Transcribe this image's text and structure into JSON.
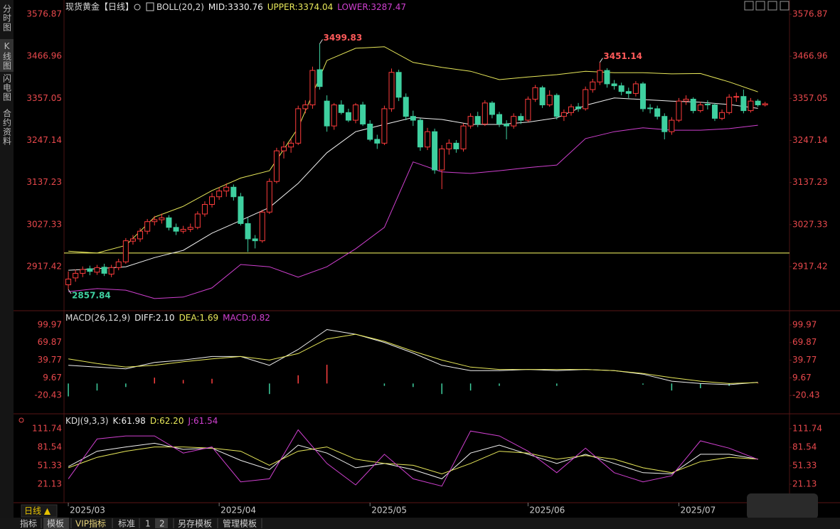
{
  "sidebar": {
    "tabs": [
      "分时图",
      "K线图",
      "闪电图",
      "合约资料"
    ]
  },
  "bottom_bar": {
    "period": "日线 ▲",
    "tabs": [
      "指标",
      "模板",
      "VIP指标",
      "标准",
      "1",
      "2",
      "另存模板",
      "管理模板"
    ]
  },
  "chart_data": [
    {
      "type": "candlestick",
      "title": "现货黄金【日线】",
      "indicator": "BOLL(20,2)",
      "up_color": "#ff3c3c",
      "down_color": "#3fd0a0",
      "xlim": [
        -0.6,
        100.4
      ],
      "ylim": [
        2806,
        3599.2
      ],
      "yticks": [
        3576.87,
        3466.96,
        3357.05,
        3247.14,
        3137.23,
        3027.33,
        2917.42
      ],
      "xticks": [
        {
          "value": 0,
          "label": "2025/03"
        },
        {
          "value": 21,
          "label": "2025/04"
        },
        {
          "value": 42,
          "label": "2025/05"
        },
        {
          "value": 64,
          "label": "2025/06"
        },
        {
          "value": 85,
          "label": "2025/07"
        }
      ],
      "hline": {
        "value": 2953,
        "color": "#ffff66"
      },
      "candles": [
        [
          2870,
          2905,
          2857.84,
          2885
        ],
        [
          2888,
          2910,
          2878,
          2900
        ],
        [
          2900,
          2918,
          2890,
          2910
        ],
        [
          2912,
          2920,
          2895,
          2905
        ],
        [
          2903,
          2922,
          2896,
          2915
        ],
        [
          2916,
          2925,
          2893,
          2900
        ],
        [
          2898,
          2922,
          2890,
          2915
        ],
        [
          2915,
          2938,
          2908,
          2930
        ],
        [
          2930,
          2992,
          2925,
          2985
        ],
        [
          2984,
          3000,
          2975,
          2990
        ],
        [
          2990,
          3018,
          2982,
          3010
        ],
        [
          3010,
          3042,
          3002,
          3035
        ],
        [
          3035,
          3050,
          3025,
          3040
        ],
        [
          3040,
          3056,
          3030,
          3045
        ],
        [
          3045,
          3052,
          3012,
          3020
        ],
        [
          3020,
          3030,
          3000,
          3010
        ],
        [
          3010,
          3024,
          3004,
          3015
        ],
        [
          3015,
          3030,
          3008,
          3020
        ],
        [
          3020,
          3062,
          3015,
          3055
        ],
        [
          3055,
          3088,
          3048,
          3080
        ],
        [
          3080,
          3110,
          3072,
          3100
        ],
        [
          3100,
          3125,
          3092,
          3115
        ],
        [
          3115,
          3135,
          3100,
          3125
        ],
        [
          3125,
          3132,
          3090,
          3100
        ],
        [
          3100,
          3110,
          3025,
          3030
        ],
        [
          3030,
          3045,
          2956,
          2990
        ],
        [
          2990,
          3000,
          2965,
          2985
        ],
        [
          2985,
          3066,
          2980,
          3060
        ],
        [
          3060,
          3148,
          3055,
          3140
        ],
        [
          3140,
          3228,
          3135,
          3220
        ],
        [
          3220,
          3245,
          3200,
          3230
        ],
        [
          3230,
          3250,
          3215,
          3240
        ],
        [
          3240,
          3338,
          3235,
          3330
        ],
        [
          3330,
          3352,
          3318,
          3340
        ],
        [
          3340,
          3440,
          3330,
          3430
        ],
        [
          3432,
          3499.83,
          3380,
          3388
        ],
        [
          3350,
          3365,
          3270,
          3285
        ],
        [
          3285,
          3345,
          3275,
          3340
        ],
        [
          3340,
          3352,
          3315,
          3320
        ],
        [
          3320,
          3330,
          3295,
          3300
        ],
        [
          3300,
          3345,
          3292,
          3340
        ],
        [
          3340,
          3348,
          3285,
          3290
        ],
        [
          3290,
          3300,
          3245,
          3250
        ],
        [
          3250,
          3262,
          3225,
          3240
        ],
        [
          3240,
          3338,
          3235,
          3330
        ],
        [
          3330,
          3435,
          3322,
          3425
        ],
        [
          3425,
          3432,
          3350,
          3360
        ],
        [
          3360,
          3370,
          3300,
          3310
        ],
        [
          3310,
          3325,
          3285,
          3300
        ],
        [
          3300,
          3305,
          3220,
          3230
        ],
        [
          3230,
          3280,
          3222,
          3270
        ],
        [
          3270,
          3278,
          3160,
          3170
        ],
        [
          3170,
          3235,
          3120,
          3225
        ],
        [
          3225,
          3250,
          3210,
          3240
        ],
        [
          3240,
          3248,
          3215,
          3225
        ],
        [
          3225,
          3292,
          3218,
          3285
        ],
        [
          3285,
          3318,
          3278,
          3310
        ],
        [
          3310,
          3322,
          3282,
          3290
        ],
        [
          3290,
          3352,
          3285,
          3345
        ],
        [
          3345,
          3350,
          3305,
          3315
        ],
        [
          3315,
          3322,
          3282,
          3290
        ],
        [
          3290,
          3300,
          3250,
          3285
        ],
        [
          3285,
          3318,
          3278,
          3310
        ],
        [
          3310,
          3318,
          3290,
          3300
        ],
        [
          3300,
          3362,
          3295,
          3355
        ],
        [
          3355,
          3392,
          3348,
          3385
        ],
        [
          3385,
          3390,
          3332,
          3340
        ],
        [
          3340,
          3378,
          3335,
          3365
        ],
        [
          3365,
          3370,
          3302,
          3310
        ],
        [
          3310,
          3328,
          3298,
          3320
        ],
        [
          3320,
          3342,
          3312,
          3335
        ],
        [
          3335,
          3345,
          3322,
          3330
        ],
        [
          3330,
          3388,
          3325,
          3380
        ],
        [
          3380,
          3408,
          3372,
          3400
        ],
        [
          3400,
          3451.14,
          3392,
          3430
        ],
        [
          3430,
          3436,
          3385,
          3395
        ],
        [
          3395,
          3405,
          3380,
          3390
        ],
        [
          3390,
          3398,
          3365,
          3375
        ],
        [
          3375,
          3385,
          3358,
          3370
        ],
        [
          3370,
          3402,
          3362,
          3395
        ],
        [
          3395,
          3400,
          3322,
          3330
        ],
        [
          3332,
          3342,
          3318,
          3330
        ],
        [
          3330,
          3338,
          3302,
          3310
        ],
        [
          3310,
          3318,
          3250,
          3270
        ],
        [
          3270,
          3308,
          3262,
          3300
        ],
        [
          3300,
          3358,
          3295,
          3350
        ],
        [
          3350,
          3365,
          3340,
          3355
        ],
        [
          3355,
          3360,
          3318,
          3325
        ],
        [
          3325,
          3348,
          3320,
          3340
        ],
        [
          3342,
          3352,
          3328,
          3340
        ],
        [
          3340,
          3345,
          3298,
          3305
        ],
        [
          3305,
          3328,
          3300,
          3320
        ],
        [
          3320,
          3368,
          3315,
          3360
        ],
        [
          3360,
          3372,
          3348,
          3362
        ],
        [
          3362,
          3380,
          3318,
          3325
        ],
        [
          3325,
          3358,
          3320,
          3350
        ],
        [
          3350,
          3355,
          3335,
          3340
        ],
        [
          3340,
          3348,
          3336,
          3343
        ]
      ],
      "x": [
        0,
        4,
        8,
        12,
        16,
        20,
        24,
        28,
        32,
        36,
        40,
        44,
        48,
        52,
        56,
        60,
        64,
        68,
        72,
        76,
        80,
        84,
        88,
        92,
        96
      ],
      "series": [
        {
          "label": "MID:3330.76",
          "color": "#f0f0f0",
          "values": [
            2908,
            2912,
            2917,
            2941,
            2960,
            3005,
            3038,
            3072,
            3135,
            3215,
            3270,
            3289,
            3307,
            3302,
            3289,
            3289,
            3295,
            3306,
            3339,
            3358,
            3354,
            3350,
            3347,
            3341,
            3331
          ]
        },
        {
          "label": "UPPER:3374.04",
          "color": "#e8e85a",
          "values": [
            2958,
            2953,
            2973,
            3047,
            3075,
            3116,
            3149,
            3168,
            3280,
            3456,
            3488,
            3492,
            3451,
            3438,
            3428,
            3406,
            3413,
            3419,
            3428,
            3424,
            3424,
            3421,
            3422,
            3400,
            3374
          ]
        },
        {
          "label": "LOWER:3287.47",
          "color": "#d040d0",
          "values": [
            2852,
            2860,
            2856,
            2834,
            2838,
            2862,
            2923,
            2917,
            2890,
            2917,
            2964,
            3020,
            3191,
            3165,
            3161,
            3168,
            3176,
            3183,
            3252,
            3270,
            3280,
            3274,
            3274,
            3278,
            3287
          ]
        }
      ]
    },
    {
      "type": "macd",
      "indicator": "MACD(26,12,9)",
      "xlim": [
        -0.6,
        100.4
      ],
      "ylim": [
        -49.3,
        120.5
      ],
      "yticks": [
        99.97,
        69.87,
        39.77,
        9.67,
        -20.43
      ],
      "x": [
        0,
        4,
        8,
        12,
        16,
        20,
        24,
        28,
        32,
        36,
        40,
        44,
        48,
        52,
        56,
        60,
        64,
        68,
        72,
        76,
        80,
        84,
        88,
        92,
        96
      ],
      "series": [
        {
          "label": "DIFF:2.10",
          "color": "#f0f0f0",
          "values": [
            31,
            28,
            25,
            36,
            40,
            46,
            46,
            31,
            58,
            92,
            84,
            70,
            52,
            31,
            22,
            22,
            24,
            22,
            24,
            22,
            16,
            4,
            0,
            -2,
            2.1
          ]
        },
        {
          "label": "DEA:1.69",
          "color": "#e8e85a",
          "values": [
            42,
            34,
            28,
            31,
            37,
            42,
            46,
            40,
            51,
            76,
            84,
            72,
            55,
            40,
            28,
            24,
            24,
            24,
            24,
            22,
            17,
            10,
            4,
            0,
            1.69
          ]
        }
      ],
      "histogram": {
        "label": "MACD:0.82",
        "color": "#d040d0",
        "up_color": "#ff4040",
        "down_color": "#3fd0a0",
        "values": [
          -22,
          -12,
          -6,
          10,
          6,
          8,
          0,
          -18,
          14,
          32,
          0,
          -4,
          -6,
          -18,
          -12,
          -4,
          0,
          -4,
          0,
          0,
          -2,
          -12,
          -8,
          -4,
          0.82
        ]
      }
    },
    {
      "type": "line",
      "indicator": "KDJ(9,3,3)",
      "xlim": [
        -0.6,
        100.4
      ],
      "ylim": [
        -6.7,
        132.6
      ],
      "yticks": [
        111.74,
        81.54,
        51.33,
        21.13
      ],
      "x": [
        0,
        4,
        8,
        12,
        16,
        20,
        24,
        28,
        32,
        36,
        40,
        44,
        48,
        52,
        56,
        60,
        64,
        68,
        72,
        76,
        80,
        84,
        88,
        92,
        96
      ],
      "series": [
        {
          "label": "K:61.98",
          "color": "#f0f0f0",
          "values": [
            50,
            75,
            82,
            88,
            78,
            80,
            60,
            45,
            85,
            72,
            48,
            55,
            45,
            30,
            72,
            85,
            70,
            55,
            70,
            55,
            40,
            38,
            70,
            70,
            61.98
          ]
        },
        {
          "label": "D:62.20",
          "color": "#e8e85a",
          "values": [
            48,
            65,
            75,
            82,
            82,
            80,
            75,
            52,
            75,
            82,
            62,
            55,
            52,
            38,
            55,
            75,
            72,
            62,
            68,
            62,
            48,
            40,
            58,
            65,
            62.2
          ]
        },
        {
          "label": "J:61.54",
          "color": "#d040d0",
          "values": [
            30,
            95,
            100,
            100,
            72,
            82,
            25,
            30,
            110,
            55,
            20,
            70,
            30,
            18,
            108,
            100,
            75,
            40,
            80,
            40,
            25,
            35,
            92,
            80,
            61.54
          ]
        }
      ]
    }
  ]
}
